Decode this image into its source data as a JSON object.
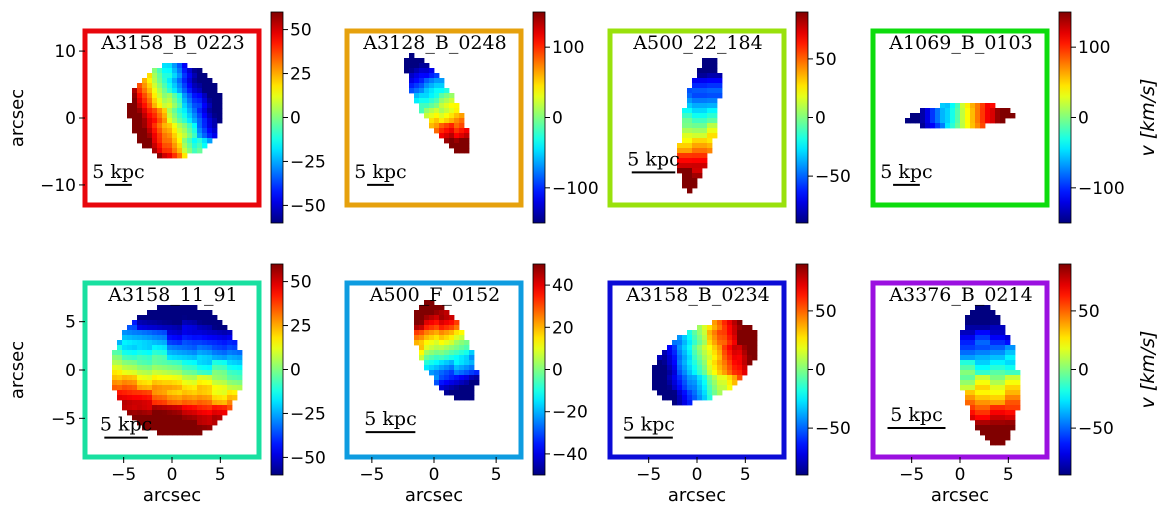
{
  "figure": {
    "colorbar_label": "v [km/s]",
    "colorbar_label_parts": {
      "v": "v",
      "unit": "[km/s]"
    },
    "scale_bar_label": "5 kpc",
    "colormap": "jet"
  },
  "chart_data": [
    {
      "type": "heatmap",
      "name": "A3158_B_0223",
      "frame_color": "#e8060c",
      "shape": "circle",
      "center": [
        0.5,
        1.0
      ],
      "radius": [
        7.0,
        7.0
      ],
      "rotation_deg": 0,
      "velocity_axis_deg": 205,
      "vmin": -60,
      "vmax": 60,
      "vlim": [
        -60,
        60
      ],
      "cb_ticks": [
        50,
        25,
        0,
        -25,
        -50
      ],
      "cb_tick_labels": [
        "50",
        "25",
        "0",
        "−25",
        "−50"
      ],
      "xlim": [
        -13,
        13
      ],
      "ylim": [
        -13,
        13
      ],
      "xticks": [],
      "xtick_labels": [],
      "yticks": [
        10,
        0,
        -10
      ],
      "ytick_labels": [
        "10",
        "0",
        "−10"
      ],
      "xlabel": "",
      "ylabel": "arcsec",
      "scalebar": [
        -10,
        -6,
        -10
      ]
    },
    {
      "type": "heatmap",
      "name": "A3128_B_0248",
      "frame_color": "#e6a10d",
      "shape": "ellipse",
      "center": [
        0.5,
        2.0
      ],
      "radius": [
        2.6,
        8.5
      ],
      "rotation_deg": 30,
      "velocity_axis_deg": 300,
      "vmin": -150,
      "vmax": 150,
      "vlim": [
        -150,
        150
      ],
      "cb_ticks": [
        100,
        0,
        -100
      ],
      "cb_tick_labels": [
        "100",
        "0",
        "−100"
      ],
      "xlim": [
        -13,
        13
      ],
      "ylim": [
        -13,
        13
      ],
      "xticks": [],
      "xtick_labels": [],
      "yticks": [],
      "ytick_labels": [],
      "xlabel": "",
      "ylabel": "",
      "scalebar": [
        -10,
        -6,
        -10
      ]
    },
    {
      "type": "heatmap",
      "name": "A500_22_184",
      "frame_color": "#99e10c",
      "shape": "ellipse",
      "center": [
        0.2,
        -0.5
      ],
      "radius": [
        1.6,
        6.3
      ],
      "rotation_deg": -10,
      "velocity_axis_deg": 270,
      "vmin": -90,
      "vmax": 90,
      "vlim": [
        -90,
        90
      ],
      "cb_ticks": [
        50,
        0,
        -50
      ],
      "cb_tick_labels": [
        "50",
        "0",
        "−50"
      ],
      "xlim": [
        -8,
        8
      ],
      "ylim": [
        -8,
        8
      ],
      "xticks": [],
      "xtick_labels": [],
      "yticks": [],
      "ytick_labels": [],
      "xlabel": "",
      "ylabel": "",
      "scalebar": [
        -6,
        -2,
        -5
      ]
    },
    {
      "type": "heatmap",
      "name": "A1069_B_0103",
      "frame_color": "#0ddc0d",
      "shape": "ellipse",
      "center": [
        0.0,
        0.3
      ],
      "radius": [
        8.0,
        1.8
      ],
      "rotation_deg": 3,
      "velocity_axis_deg": 0,
      "vmin": -150,
      "vmax": 150,
      "vlim": [
        -150,
        150
      ],
      "cb_ticks": [
        100,
        0,
        -100
      ],
      "cb_tick_labels": [
        "100",
        "0",
        "−100"
      ],
      "xlim": [
        -13,
        13
      ],
      "ylim": [
        -13,
        13
      ],
      "xticks": [],
      "xtick_labels": [],
      "yticks": [],
      "ytick_labels": [],
      "xlabel": "",
      "ylabel": "",
      "scalebar": [
        -10,
        -6,
        -10
      ]
    },
    {
      "type": "heatmap",
      "name": "A3158_11_91",
      "frame_color": "#18e0a0",
      "shape": "circle",
      "center": [
        0.5,
        0.0
      ],
      "radius": [
        6.7,
        6.9
      ],
      "rotation_deg": 0,
      "velocity_axis_deg": 260,
      "vmin": -60,
      "vmax": 60,
      "vlim": [
        -60,
        60
      ],
      "cb_ticks": [
        50,
        25,
        0,
        -25,
        -50
      ],
      "cb_tick_labels": [
        "50",
        "25",
        "0",
        "−25",
        "−50"
      ],
      "xlim": [
        -9,
        9
      ],
      "ylim": [
        -9,
        9
      ],
      "xticks": [
        -5,
        0,
        5
      ],
      "xtick_labels": [
        "−5",
        "0",
        "5"
      ],
      "yticks": [
        5,
        0,
        -5
      ],
      "ytick_labels": [
        "5",
        "0",
        "−5"
      ],
      "xlabel": "arcsec",
      "ylabel": "arcsec",
      "scalebar": [
        -7,
        -2.5,
        -7
      ]
    },
    {
      "type": "heatmap",
      "name": "A500_F_0152",
      "frame_color": "#0e9ce0",
      "shape": "ellipse",
      "center": [
        0.9,
        1.5
      ],
      "radius": [
        2.0,
        4.3
      ],
      "rotation_deg": 25,
      "velocity_axis_deg": 110,
      "vmin": -50,
      "vmax": 50,
      "vlim": [
        -50,
        50
      ],
      "cb_ticks": [
        40,
        20,
        0,
        -20,
        -40
      ],
      "cb_tick_labels": [
        "40",
        "20",
        "0",
        "−20",
        "−40"
      ],
      "xlim": [
        -7,
        7
      ],
      "ylim": [
        -7,
        7
      ],
      "xticks": [
        -5,
        0,
        5
      ],
      "xtick_labels": [
        "−5",
        "0",
        "5"
      ],
      "yticks": [],
      "ytick_labels": [],
      "xlabel": "arcsec",
      "ylabel": "",
      "scalebar": [
        -5.5,
        -1.5,
        -5
      ]
    },
    {
      "type": "heatmap",
      "name": "A3158_B_0234",
      "frame_color": "#0b0bd6",
      "shape": "ellipse",
      "center": [
        0.8,
        0.8
      ],
      "radius": [
        6.0,
        3.6
      ],
      "rotation_deg": 30,
      "velocity_axis_deg": 20,
      "vmin": -90,
      "vmax": 90,
      "vlim": [
        -90,
        90
      ],
      "cb_ticks": [
        50,
        0,
        -50
      ],
      "cb_tick_labels": [
        "50",
        "0",
        "−50"
      ],
      "xlim": [
        -9,
        9
      ],
      "ylim": [
        -9,
        9
      ],
      "xticks": [
        -5,
        0,
        5
      ],
      "xtick_labels": [
        "−5",
        "0",
        "5"
      ],
      "yticks": [],
      "ytick_labels": [],
      "xlabel": "arcsec",
      "ylabel": "",
      "scalebar": [
        -7.5,
        -2.5,
        -7
      ]
    },
    {
      "type": "heatmap",
      "name": "A3376_B_0214",
      "frame_color": "#9b10e0",
      "shape": "ellipse",
      "center": [
        3.0,
        -0.5
      ],
      "radius": [
        3.0,
        7.2
      ],
      "rotation_deg": 8,
      "velocity_axis_deg": 270,
      "vmin": -90,
      "vmax": 90,
      "vlim": [
        -90,
        90
      ],
      "cb_ticks": [
        50,
        0,
        -50
      ],
      "cb_tick_labels": [
        "50",
        "0",
        "−50"
      ],
      "xlim": [
        -9,
        9
      ],
      "ylim": [
        -9,
        9
      ],
      "xticks": [
        -5,
        0,
        5
      ],
      "xtick_labels": [
        "−5",
        "0",
        "5"
      ],
      "yticks": [],
      "ytick_labels": [],
      "xlabel": "arcsec",
      "ylabel": "",
      "scalebar": [
        -7.5,
        -1.5,
        -6
      ]
    }
  ]
}
